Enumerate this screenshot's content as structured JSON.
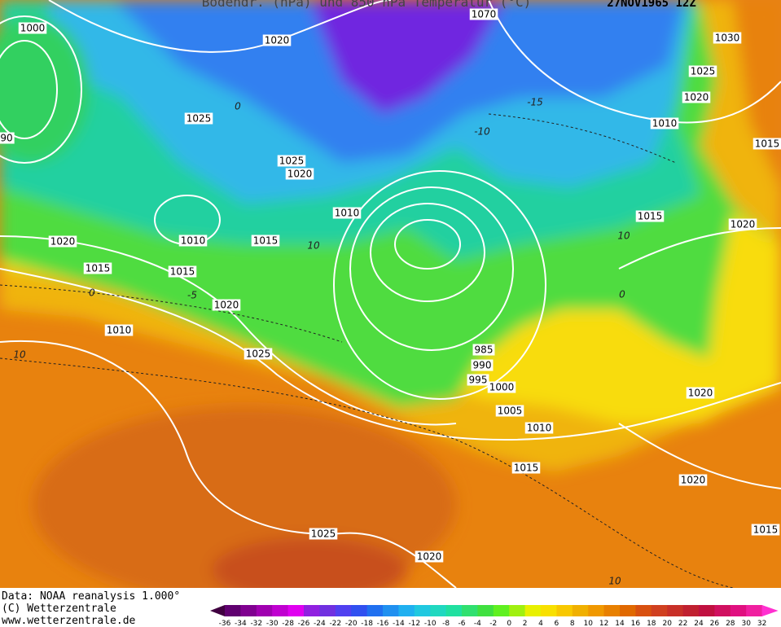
{
  "header": {
    "title": "Bodendr. (hPa)  und 850 hPa Temperatur (°C)",
    "date": "27NOV1965 12Z"
  },
  "isobar_labels": [
    1000,
    1020,
    1030,
    1025,
    1020,
    1025,
    1010,
    1015,
    1025,
    1020,
    1010,
    1015,
    1020,
    1020,
    1010,
    1015,
    1015,
    1015,
    1020,
    1010,
    1025,
    985,
    990,
    995,
    1000,
    1005,
    1010,
    1015,
    1020,
    1020,
    1025,
    1020,
    1015,
    1070,
    90
  ],
  "temperature_labels": [
    -15,
    10,
    -5,
    0,
    10,
    10,
    0,
    -10,
    10,
    0
  ],
  "footer": {
    "source": "Data: NOAA reanalysis 1.000°",
    "copyright": "(C) Wetterzentrale",
    "url": "www.wetterzentrale.de"
  },
  "colorbar": {
    "ticks": [
      -36,
      -34,
      -32,
      -30,
      -28,
      -26,
      -24,
      -22,
      -20,
      -18,
      -16,
      -14,
      -12,
      -10,
      -8,
      -6,
      -4,
      -2,
      0,
      2,
      4,
      6,
      8,
      10,
      12,
      14,
      16,
      18,
      20,
      22,
      24,
      26,
      28,
      30,
      32
    ]
  }
}
